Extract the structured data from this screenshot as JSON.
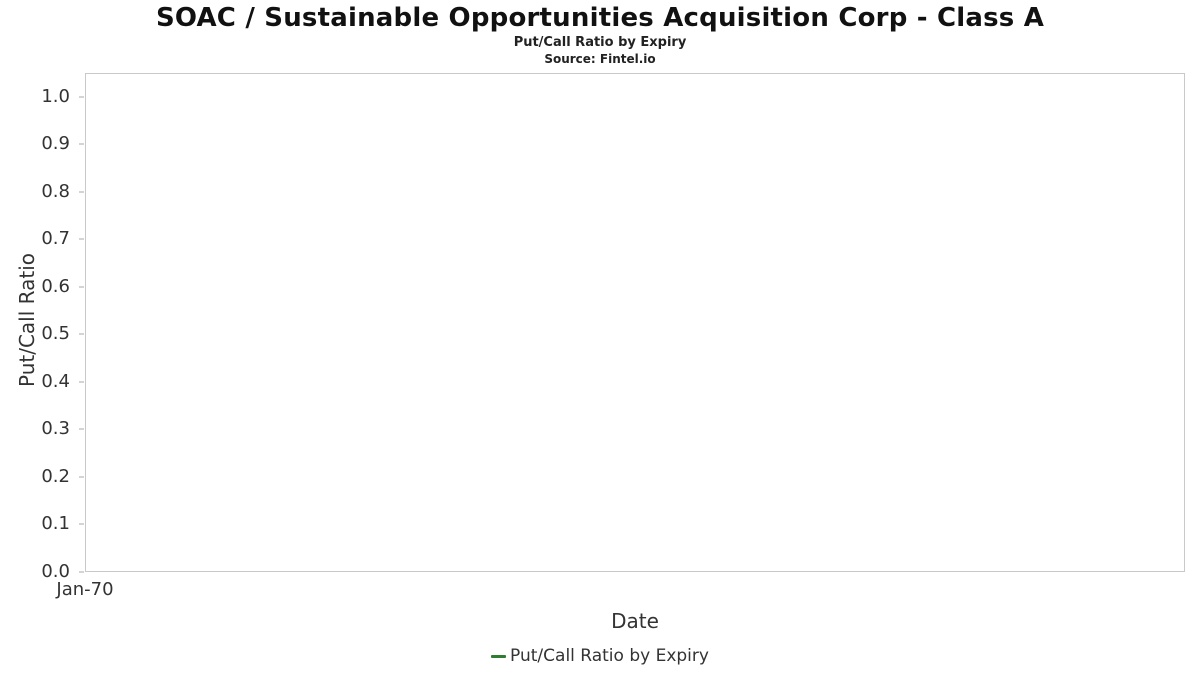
{
  "header": {
    "title": "SOAC / Sustainable Opportunities Acquisition Corp - Class A",
    "subtitle": "Put/Call Ratio by Expiry",
    "source": "Source: Fintel.io"
  },
  "legend": {
    "label": "Put/Call Ratio by Expiry",
    "color": "#2e7d32"
  },
  "chart_data": {
    "type": "line",
    "title": "Put/Call Ratio by Expiry",
    "xlabel": "Date",
    "ylabel": "Put/Call Ratio",
    "x_tick_labels": [
      "Jan-70"
    ],
    "y_ticks": [
      1.0,
      0.9,
      0.8,
      0.7,
      0.6,
      0.5,
      0.4,
      0.3,
      0.2,
      0.1,
      0.0
    ],
    "ylim": [
      0,
      1.05
    ],
    "grid": false,
    "legend_position": "bottom",
    "series": [
      {
        "name": "Put/Call Ratio by Expiry",
        "color": "#2e7d32",
        "x": [],
        "values": []
      }
    ]
  }
}
